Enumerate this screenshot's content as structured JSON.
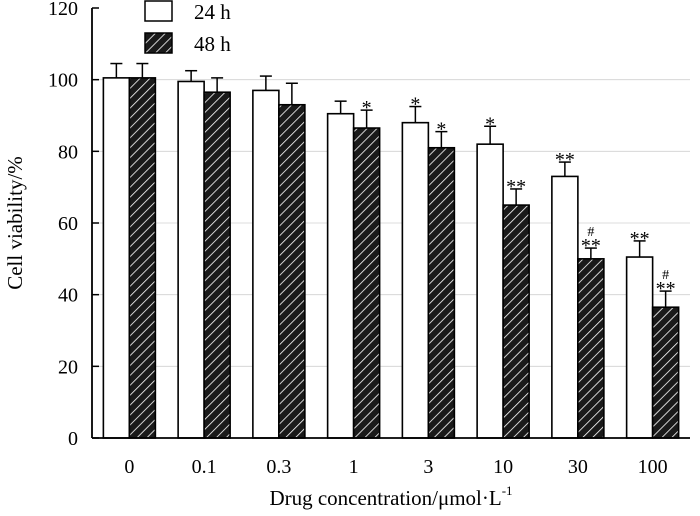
{
  "chart_data": {
    "type": "bar",
    "title": "",
    "xlabel": "Drug concentration/μmol·L",
    "xlabel_superscript": "-1",
    "ylabel": "Cell viability/%",
    "ylim": [
      0,
      120
    ],
    "yticks": [
      "0",
      "20",
      "40",
      "60",
      "80",
      "100",
      "120"
    ],
    "ytick_values": [
      0,
      20,
      40,
      60,
      80,
      100,
      120
    ],
    "categories": [
      "0",
      "0.1",
      "0.3",
      "1",
      "3",
      "10",
      "30",
      "100"
    ],
    "legend_position": "top-left",
    "series": [
      {
        "name": "24 h",
        "fill": "open",
        "values": [
          100.5,
          99.5,
          97,
          90.5,
          88,
          82,
          73,
          50.5
        ],
        "errors": [
          4,
          3,
          4,
          3.5,
          4.5,
          5,
          4,
          4.5
        ],
        "annotations": [
          "",
          "",
          "",
          "",
          "*",
          "*",
          "**",
          "**"
        ],
        "annotations_sup": [
          "",
          "",
          "",
          "",
          "",
          "",
          "",
          ""
        ]
      },
      {
        "name": "48 h",
        "fill": "hatched",
        "values": [
          100.5,
          96.5,
          93,
          86.5,
          81,
          65,
          50,
          36.5
        ],
        "errors": [
          4,
          4,
          6,
          5,
          4.5,
          4.5,
          3,
          4.5
        ],
        "annotations": [
          "",
          "",
          "",
          "*",
          "*",
          "**",
          "**",
          "**"
        ],
        "annotations_sup": [
          "",
          "",
          "",
          "",
          "",
          "",
          "#",
          "#"
        ]
      }
    ]
  }
}
